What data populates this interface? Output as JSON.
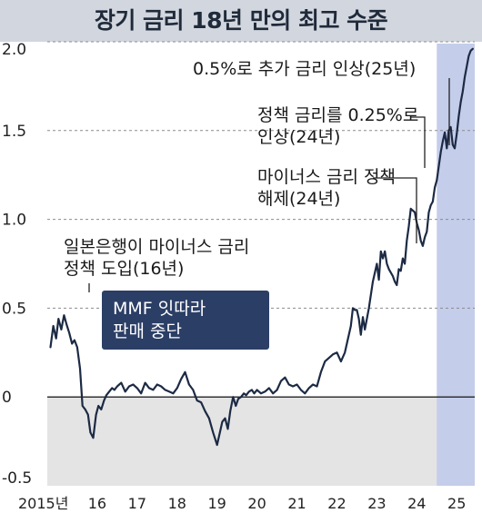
{
  "chart_data": {
    "type": "line",
    "title": "장기 금리 18년 만의 최고 수준",
    "xlabel": "",
    "ylabel": "",
    "ylim": [
      -0.5,
      2.0
    ],
    "xlim": [
      2015.25,
      2025.95
    ],
    "grid": true,
    "y_ticks": [
      "2.0",
      "1.5",
      "1.0",
      "0.5",
      "0",
      "-0.5"
    ],
    "y_tick_values": [
      2.0,
      1.5,
      1.0,
      0.5,
      0,
      -0.5
    ],
    "x_ticks": [
      "2015년",
      "16",
      "17",
      "18",
      "19",
      "20",
      "21",
      "22",
      "23",
      "24",
      "25"
    ],
    "x_tick_values": [
      2015.3,
      2016.5,
      2017.5,
      2018.5,
      2019.5,
      2020.5,
      2021.5,
      2022.5,
      2023.5,
      2024.5,
      2025.5
    ],
    "shaded_x_range": [
      2025.0,
      2025.95
    ],
    "colors": {
      "line": "#1c2a44",
      "negative_area": "#e4e4e4",
      "highlight": "#c4cdea",
      "grid": "#8c8c8c",
      "title_band": "#d2d6de",
      "callout_box": "#2b3e66"
    },
    "annotations": [
      {
        "lines": [
          "일본은행이 마이너스 금리",
          "정책 도입(16년)"
        ],
        "x": 2016.08,
        "y": 0.34
      },
      {
        "lines": [
          "마이너스 금리 정책",
          "해제(24년)"
        ],
        "x": 2024.25,
        "y": 0.9
      },
      {
        "lines": [
          "정책 금리를 0.25%로",
          "인상(24년)"
        ],
        "x": 2024.65,
        "y": 1.07
      },
      {
        "lines": [
          "0.5%로 추가 금리 인상(25년)"
        ],
        "x": 2025.1,
        "y": 1.45
      }
    ],
    "callout": {
      "lines": [
        "MMF 잇따라",
        "판매 중단"
      ]
    },
    "series": [
      {
        "x": [
          2015.33,
          2015.4,
          2015.47,
          2015.53,
          2015.6,
          2015.67,
          2015.73,
          2015.8,
          2015.87,
          2015.93,
          2016.0,
          2016.07,
          2016.13,
          2016.2,
          2016.27,
          2016.33,
          2016.4,
          2016.47,
          2016.53,
          2016.6,
          2016.67,
          2016.73,
          2016.8,
          2016.87,
          2016.93,
          2017.0,
          2017.1,
          2017.2,
          2017.3,
          2017.4,
          2017.5,
          2017.6,
          2017.7,
          2017.8,
          2017.9,
          2018.0,
          2018.1,
          2018.2,
          2018.3,
          2018.4,
          2018.5,
          2018.6,
          2018.7,
          2018.8,
          2018.9,
          2019.0,
          2019.1,
          2019.2,
          2019.3,
          2019.4,
          2019.5,
          2019.57,
          2019.63,
          2019.7,
          2019.77,
          2019.83,
          2019.9,
          2019.97,
          2020.03,
          2020.1,
          2020.17,
          2020.23,
          2020.3,
          2020.37,
          2020.43,
          2020.5,
          2020.6,
          2020.7,
          2020.8,
          2020.9,
          2021.0,
          2021.1,
          2021.2,
          2021.3,
          2021.4,
          2021.5,
          2021.6,
          2021.7,
          2021.8,
          2021.9,
          2022.0,
          2022.1,
          2022.2,
          2022.3,
          2022.4,
          2022.5,
          2022.6,
          2022.7,
          2022.8,
          2022.85,
          2022.9,
          2022.95,
          2023.0,
          2023.05,
          2023.1,
          2023.15,
          2023.2,
          2023.3,
          2023.4,
          2023.5,
          2023.55,
          2023.6,
          2023.65,
          2023.7,
          2023.75,
          2023.8,
          2023.85,
          2023.9,
          2023.95,
          2024.0,
          2024.05,
          2024.1,
          2024.15,
          2024.2,
          2024.25,
          2024.3,
          2024.35,
          2024.4,
          2024.45,
          2024.5,
          2024.55,
          2024.6,
          2024.65,
          2024.7,
          2024.75,
          2024.8,
          2024.85,
          2024.9,
          2024.95,
          2025.0,
          2025.05,
          2025.1,
          2025.15,
          2025.2,
          2025.25,
          2025.3,
          2025.35,
          2025.4,
          2025.45,
          2025.5,
          2025.55,
          2025.6,
          2025.65,
          2025.7,
          2025.75,
          2025.8,
          2025.85,
          2025.9
        ],
        "values": [
          0.28,
          0.4,
          0.33,
          0.44,
          0.38,
          0.46,
          0.41,
          0.36,
          0.3,
          0.32,
          0.28,
          0.16,
          -0.05,
          -0.07,
          -0.1,
          -0.2,
          -0.23,
          -0.1,
          -0.05,
          -0.07,
          -0.02,
          0.01,
          0.03,
          0.05,
          0.04,
          0.06,
          0.08,
          0.03,
          0.06,
          0.07,
          0.05,
          0.02,
          0.08,
          0.05,
          0.04,
          0.07,
          0.06,
          0.04,
          0.03,
          0.02,
          0.05,
          0.1,
          0.14,
          0.07,
          0.04,
          -0.02,
          -0.03,
          -0.08,
          -0.12,
          -0.2,
          -0.27,
          -0.2,
          -0.14,
          -0.12,
          -0.18,
          -0.08,
          0.0,
          -0.05,
          -0.01,
          0.0,
          0.02,
          0.01,
          0.03,
          0.04,
          0.02,
          0.04,
          0.02,
          0.03,
          0.05,
          0.02,
          0.04,
          0.09,
          0.11,
          0.07,
          0.06,
          0.07,
          0.04,
          0.02,
          0.05,
          0.07,
          0.06,
          0.14,
          0.2,
          0.22,
          0.24,
          0.25,
          0.2,
          0.25,
          0.35,
          0.4,
          0.5,
          0.49,
          0.49,
          0.44,
          0.35,
          0.45,
          0.38,
          0.5,
          0.65,
          0.75,
          0.66,
          0.82,
          0.78,
          0.82,
          0.75,
          0.72,
          0.7,
          0.68,
          0.65,
          0.63,
          0.72,
          0.71,
          0.78,
          0.75,
          0.88,
          0.96,
          1.06,
          1.05,
          1.04,
          0.98,
          0.94,
          0.88,
          0.85,
          0.9,
          0.93,
          1.04,
          1.08,
          1.1,
          1.18,
          1.22,
          1.3,
          1.38,
          1.44,
          1.49,
          1.4,
          1.5,
          1.52,
          1.42,
          1.4,
          1.48,
          1.58,
          1.66,
          1.72,
          1.8,
          1.86,
          1.92,
          1.95,
          1.96
        ]
      }
    ]
  }
}
